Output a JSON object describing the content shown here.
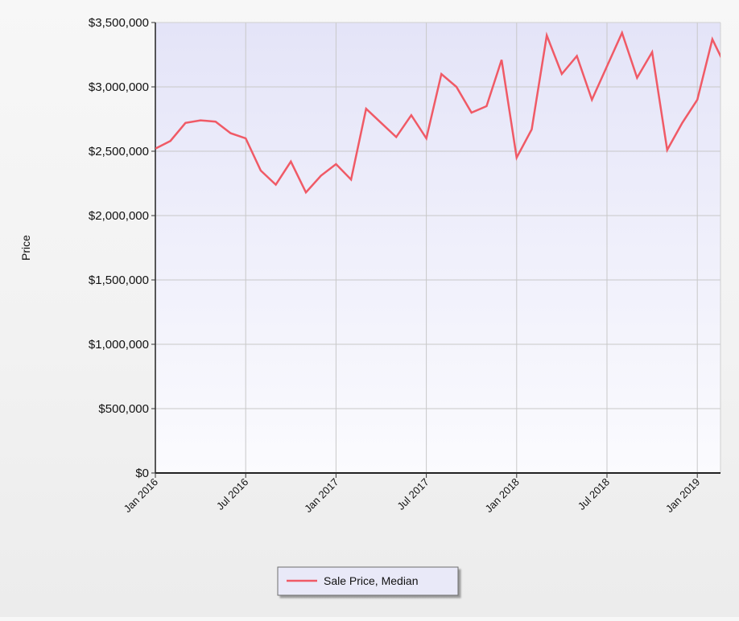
{
  "chart_data": {
    "type": "line",
    "title": "",
    "xlabel": "",
    "ylabel": "Price",
    "ylim": [
      0,
      3500000
    ],
    "y_ticks": [
      {
        "value": 0,
        "label": "$0"
      },
      {
        "value": 500000,
        "label": "$500,000"
      },
      {
        "value": 1000000,
        "label": "$1,000,000"
      },
      {
        "value": 1500000,
        "label": "$1,500,000"
      },
      {
        "value": 2000000,
        "label": "$2,000,000"
      },
      {
        "value": 2500000,
        "label": "$2,500,000"
      },
      {
        "value": 3000000,
        "label": "$3,000,000"
      },
      {
        "value": 3500000,
        "label": "$3,500,000"
      }
    ],
    "x_ticks": [
      "Jan 2016",
      "Jul 2016",
      "Jan 2017",
      "Jul 2017",
      "Jan 2018",
      "Jul 2018",
      "Jan 2019"
    ],
    "x_range": [
      "Jan 2016",
      "Apr 2019"
    ],
    "grid": true,
    "legend_position": "bottom-center",
    "colors": {
      "series": "#f05a66",
      "plot_top": "#e4e4f8",
      "plot_bottom": "#fbfbfe",
      "grid": "#c8c8c8"
    },
    "series": [
      {
        "name": "Sale Price, Median",
        "x": [
          "Jan 2016",
          "Feb 2016",
          "Mar 2016",
          "Apr 2016",
          "May 2016",
          "Jun 2016",
          "Jul 2016",
          "Aug 2016",
          "Sep 2016",
          "Oct 2016",
          "Nov 2016",
          "Dec 2016",
          "Jan 2017",
          "Feb 2017",
          "Mar 2017",
          "Apr 2017",
          "May 2017",
          "Jun 2017",
          "Jul 2017",
          "Aug 2017",
          "Sep 2017",
          "Oct 2017",
          "Nov 2017",
          "Dec 2017",
          "Jan 2018",
          "Feb 2018",
          "Mar 2018",
          "Apr 2018",
          "May 2018",
          "Jun 2018",
          "Jul 2018",
          "Aug 2018",
          "Sep 2018",
          "Oct 2018",
          "Nov 2018",
          "Dec 2018",
          "Jan 2019",
          "Feb 2019",
          "Mar 2019",
          "Apr 2019"
        ],
        "values": [
          2520000,
          2580000,
          2720000,
          2740000,
          2730000,
          2640000,
          2600000,
          2350000,
          2240000,
          2420000,
          2180000,
          2310000,
          2400000,
          2280000,
          2830000,
          2720000,
          2610000,
          2780000,
          2600000,
          3100000,
          3000000,
          2800000,
          2850000,
          3210000,
          2450000,
          2670000,
          3400000,
          3100000,
          3240000,
          2900000,
          3160000,
          3420000,
          3070000,
          3270000,
          2510000,
          2720000,
          2900000,
          3370000,
          3130000,
          3120000
        ]
      }
    ]
  }
}
